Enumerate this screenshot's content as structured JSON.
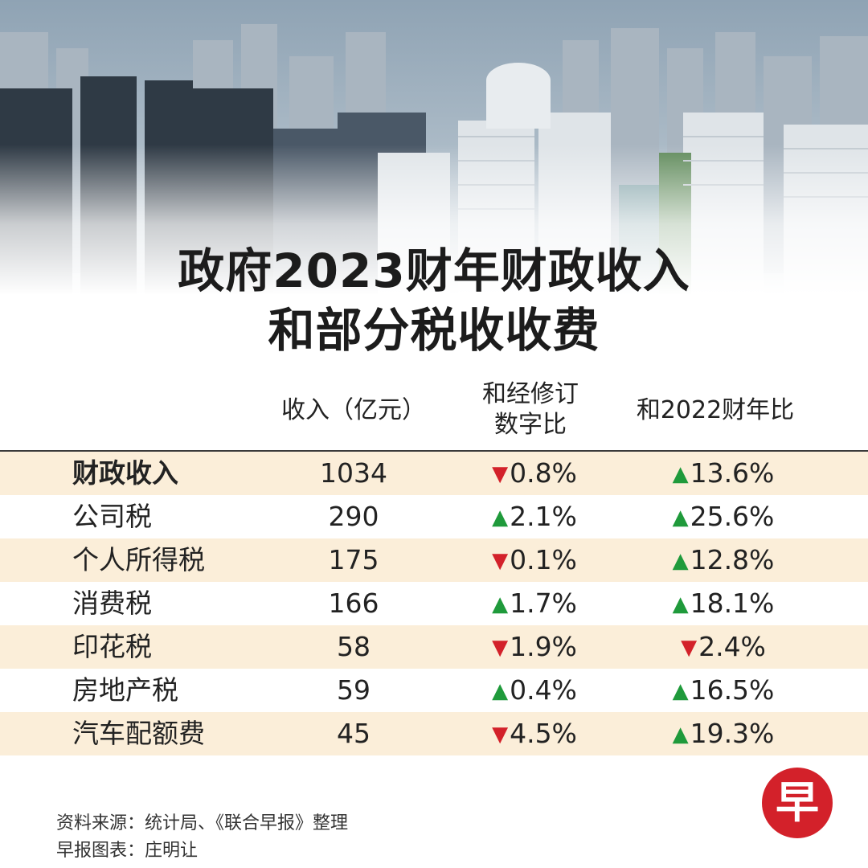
{
  "title": {
    "line1": "政府2023财年财政收入",
    "line2": "和部分税收收费"
  },
  "chart_data": {
    "type": "table",
    "columns": {
      "label": "",
      "revenue": "收入（亿元）",
      "vs_revised": [
        "和经修订",
        "数字比"
      ],
      "vs_2022": "和2022财年比"
    },
    "rows": [
      {
        "label": "财政收入",
        "revenue": "1034",
        "vs_revised": {
          "dir": "down",
          "value": "0.8%"
        },
        "vs_2022": {
          "dir": "up",
          "value": "13.6%"
        }
      },
      {
        "label": "公司税",
        "revenue": "290",
        "vs_revised": {
          "dir": "up",
          "value": "2.1%"
        },
        "vs_2022": {
          "dir": "up",
          "value": "25.6%"
        }
      },
      {
        "label": "个人所得税",
        "revenue": "175",
        "vs_revised": {
          "dir": "down",
          "value": "0.1%"
        },
        "vs_2022": {
          "dir": "up",
          "value": "12.8%"
        }
      },
      {
        "label": "消费税",
        "revenue": "166",
        "vs_revised": {
          "dir": "up",
          "value": "1.7%"
        },
        "vs_2022": {
          "dir": "up",
          "value": "18.1%"
        }
      },
      {
        "label": "印花税",
        "revenue": "58",
        "vs_revised": {
          "dir": "down",
          "value": "1.9%"
        },
        "vs_2022": {
          "dir": "down",
          "value": "2.4%"
        }
      },
      {
        "label": "房地产税",
        "revenue": "59",
        "vs_revised": {
          "dir": "up",
          "value": "0.4%"
        },
        "vs_2022": {
          "dir": "up",
          "value": "16.5%"
        }
      },
      {
        "label": "汽车配额费",
        "revenue": "45",
        "vs_revised": {
          "dir": "down",
          "value": "4.5%"
        },
        "vs_2022": {
          "dir": "up",
          "value": "19.3%"
        }
      }
    ]
  },
  "arrows": {
    "up": "▲",
    "down": "▼"
  },
  "colors": {
    "up": "#1f9a3b",
    "down": "#d3212a",
    "row_shade": "#fbeed9",
    "logo": "#d3212a"
  },
  "logo": {
    "char": "早"
  },
  "source": {
    "line1": "资料来源：统计局、《联合早报》整理",
    "line2": "早报图表：庄明让"
  }
}
